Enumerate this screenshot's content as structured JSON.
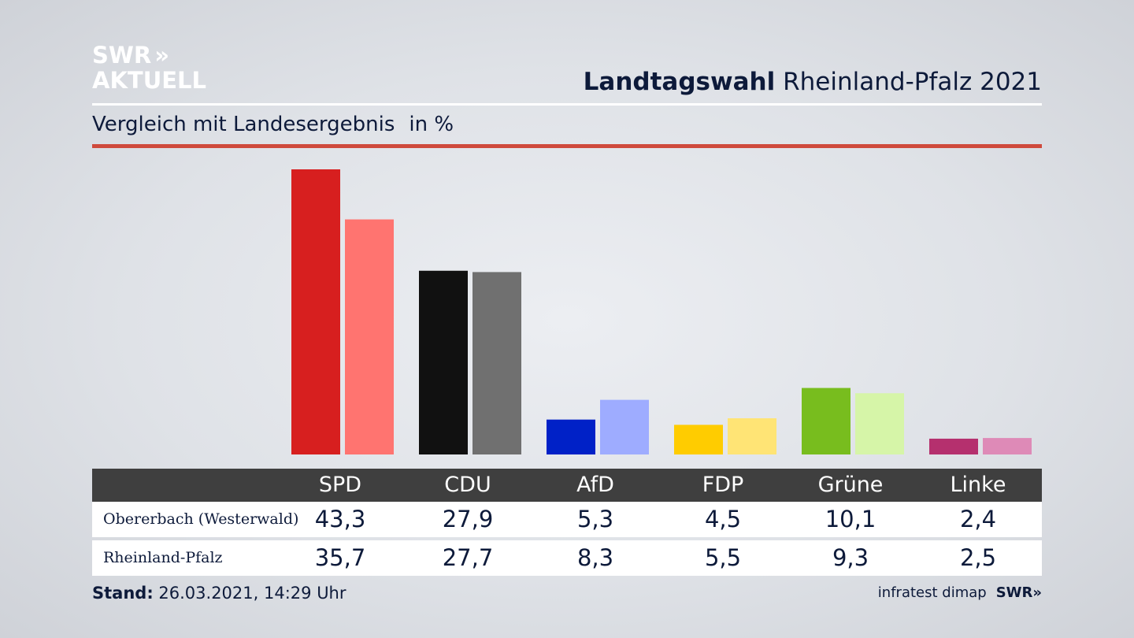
{
  "logo": {
    "line1": "SWR",
    "line2": "AKTUELL",
    "chevrons": "»"
  },
  "header": {
    "title_bold": "Landtagswahl",
    "title_rest": "Rheinland-Pfalz 2021"
  },
  "subtitle": {
    "text": "Vergleich mit Landesergebnis",
    "unit": "in %"
  },
  "chart_data": {
    "type": "bar",
    "title": "Landtagswahl Rheinland-Pfalz 2021",
    "subtitle": "Vergleich mit Landesergebnis in %",
    "categories": [
      "SPD",
      "CDU",
      "AfD",
      "FDP",
      "Grüne",
      "Linke"
    ],
    "series": [
      {
        "name": "Obererbach (Westerwald)",
        "values": [
          43.3,
          27.9,
          5.3,
          4.5,
          10.1,
          2.4
        ],
        "display": [
          "43,3",
          "27,9",
          "5,3",
          "4,5",
          "10,1",
          "2,4"
        ],
        "colors": [
          "#d71f1f",
          "#111111",
          "#0021c7",
          "#ffcc00",
          "#78bd1e",
          "#b5306e"
        ]
      },
      {
        "name": "Rheinland-Pfalz",
        "values": [
          35.7,
          27.7,
          8.3,
          5.5,
          9.3,
          2.5
        ],
        "display": [
          "35,7",
          "27,7",
          "8,3",
          "5,5",
          "9,3",
          "2,5"
        ],
        "colors": [
          "#ff7470",
          "#707070",
          "#9eacff",
          "#ffe475",
          "#d6f5a8",
          "#de8ab7"
        ]
      }
    ],
    "ylim": [
      0,
      43.3
    ],
    "grid": false,
    "legend": "none"
  },
  "footer": {
    "stand_label": "Stand:",
    "stand_value": "26.03.2021, 14:29 Uhr"
  },
  "source": {
    "text": "infratest dimap",
    "logo": "SWR»"
  }
}
